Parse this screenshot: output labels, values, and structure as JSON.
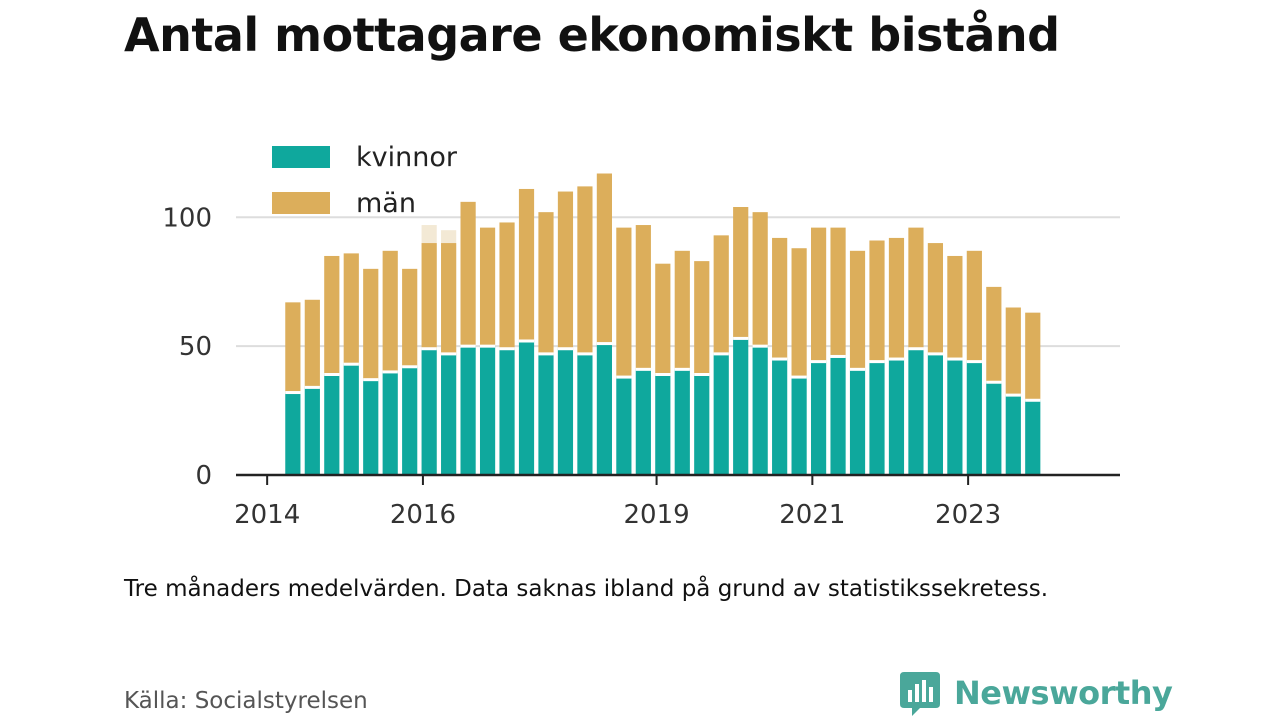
{
  "title": "Antal mottagare ekonomiskt bistånd",
  "note": "Tre månaders medelvärden. Data saknas ibland på grund av statistikssekretess.",
  "source": "Källa: Socialstyrelsen",
  "brand": {
    "name": "Newsworthy",
    "icon": "newsworthy-logo-icon",
    "color": "#4aa79a"
  },
  "colors": {
    "kvinnor": "#0fa89d",
    "man": "#dcae5b",
    "faded": "#f3e9d5",
    "grid": "#dddddd",
    "axis": "#222222"
  },
  "chart_data": {
    "type": "bar",
    "stacked": true,
    "ylim": [
      0,
      130
    ],
    "yticks": [
      0,
      50,
      100
    ],
    "xlabel": "",
    "ylabel": "",
    "xticks": [
      {
        "label": "2014",
        "x": 2014.0
      },
      {
        "label": "2016",
        "x": 2016.0
      },
      {
        "label": "2019",
        "x": 2019.0
      },
      {
        "label": "2021",
        "x": 2021.0
      },
      {
        "label": "2023",
        "x": 2023.0
      }
    ],
    "xlim": [
      2013.6,
      2024.95
    ],
    "legend": {
      "placement": "top-left",
      "items": [
        {
          "label": "kvinnor",
          "series": "kvinnor"
        },
        {
          "label": "män",
          "series": "man"
        }
      ]
    },
    "x": [
      2014.33,
      2014.58,
      2014.83,
      2015.08,
      2015.33,
      2015.58,
      2015.83,
      2016.08,
      2016.33,
      2016.58,
      2016.83,
      2017.08,
      2017.33,
      2017.58,
      2017.83,
      2018.08,
      2018.33,
      2018.58,
      2018.83,
      2019.08,
      2019.33,
      2019.58,
      2019.83,
      2020.08,
      2020.33,
      2020.58,
      2020.83,
      2021.08,
      2021.33,
      2021.58,
      2021.83,
      2022.08,
      2022.33,
      2022.58,
      2022.83,
      2023.08,
      2023.33,
      2023.58,
      2023.83
    ],
    "series": [
      {
        "key": "kvinnor",
        "name": "kvinnor",
        "values": [
          32,
          34,
          39,
          43,
          37,
          40,
          42,
          49,
          47,
          50,
          50,
          49,
          52,
          47,
          49,
          47,
          51,
          38,
          41,
          39,
          41,
          39,
          47,
          53,
          50,
          45,
          38,
          44,
          46,
          41,
          44,
          45,
          49,
          47,
          45,
          44,
          36,
          31,
          29
        ]
      },
      {
        "key": "man",
        "name": "män",
        "values": [
          35,
          34,
          46,
          43,
          43,
          47,
          38,
          41,
          43,
          56,
          46,
          49,
          59,
          55,
          61,
          65,
          66,
          58,
          56,
          43,
          46,
          44,
          46,
          51,
          52,
          47,
          50,
          52,
          50,
          46,
          47,
          47,
          47,
          43,
          40,
          43,
          37,
          34,
          34
        ]
      }
    ],
    "faded_bars": [
      {
        "x": 2016.08,
        "top": 97
      },
      {
        "x": 2016.33,
        "top": 95
      }
    ]
  }
}
